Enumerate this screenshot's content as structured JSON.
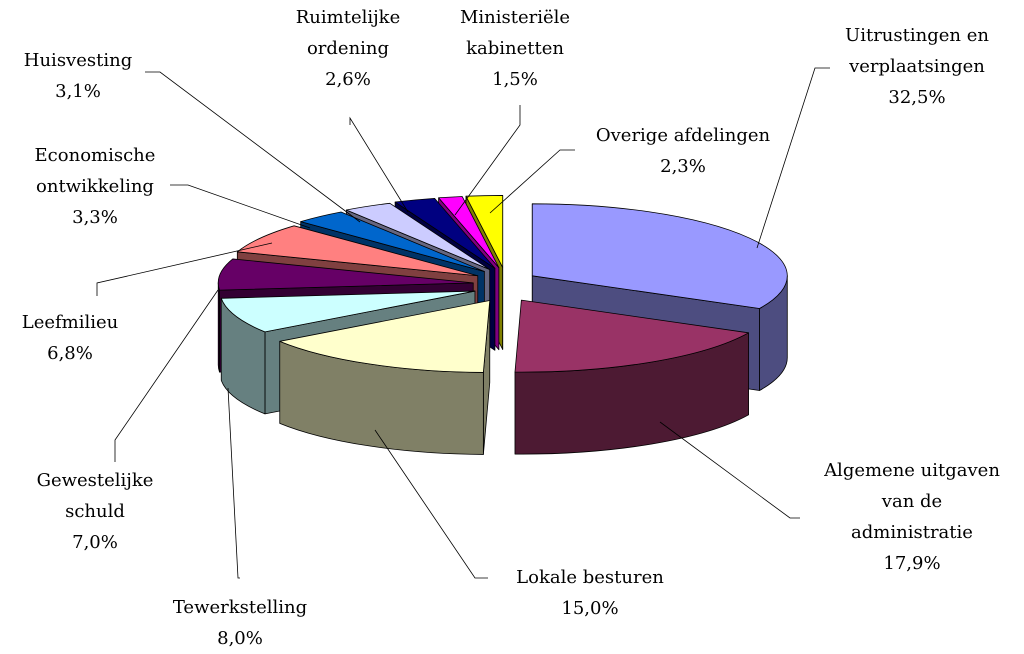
{
  "chart_data": {
    "type": "pie",
    "categories": [
      "Uitrustingen en\nverplaatsingen",
      "Algemene uitgaven\nvan de\nadministratie",
      "Lokale besturen",
      "Tewerkstelling",
      "Gewestelijke\nschuld",
      "Leefmilieu",
      "Economische\nontwikkeling",
      "Huisvesting",
      "Ruimtelijke\nordening",
      "Ministeriële\nkabinetten",
      "Overige afdelingen"
    ],
    "values": [
      32.5,
      17.9,
      15.0,
      8.0,
      7.0,
      6.8,
      3.3,
      3.1,
      2.6,
      1.5,
      2.3
    ],
    "value_labels": [
      "32,5%",
      "17,9%",
      "15,0%",
      "8,0%",
      "7,0%",
      "6,8%",
      "3,3%",
      "3,1%",
      "2,6%",
      "1,5%",
      "2,3%"
    ],
    "colors": [
      "#9999ff",
      "#993366",
      "#ffffcc",
      "#ccffff",
      "#660066",
      "#ff8080",
      "#0066cc",
      "#ccccff",
      "#000080",
      "#ff00ff",
      "#ffff00"
    ]
  }
}
